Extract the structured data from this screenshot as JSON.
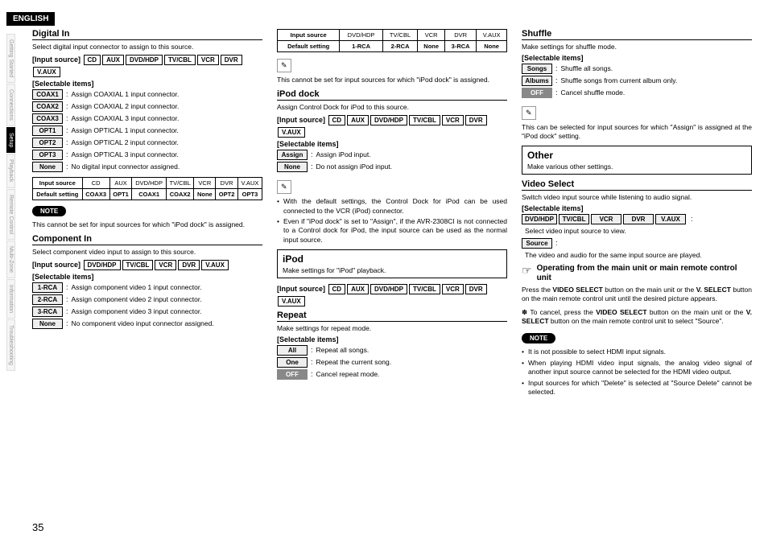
{
  "lang": "ENGLISH",
  "sideTabs": [
    "Getting Started",
    "Connections",
    "Setup",
    "Playback",
    "Remote Control",
    "Multi-Zone",
    "Information",
    "Troubleshooting"
  ],
  "activeTab": 2,
  "pageNum": "35",
  "digitalIn": {
    "title": "Digital In",
    "sub": "Select digital input connector to assign to this source.",
    "inputLabel": "[Input source]",
    "inputs": [
      "CD",
      "AUX",
      "DVD/HDP",
      "TV/CBL",
      "VCR",
      "DVR",
      "V.AUX"
    ],
    "selLabel": "[Selectable items]",
    "items": [
      {
        "k": "COAX1",
        "d": "Assign COAXIAL 1 input connector."
      },
      {
        "k": "COAX2",
        "d": "Assign COAXIAL 2 input connector."
      },
      {
        "k": "COAX3",
        "d": "Assign COAXIAL 3 input connector."
      },
      {
        "k": "OPT1",
        "d": "Assign OPTICAL 1 input connector."
      },
      {
        "k": "OPT2",
        "d": "Assign OPTICAL 2 input connector."
      },
      {
        "k": "OPT3",
        "d": "Assign OPTICAL 3 input connector."
      },
      {
        "k": "None",
        "d": "No digital input connector assigned."
      }
    ],
    "table": {
      "h1": "Input source",
      "h2": "Default setting",
      "cols": [
        "CD",
        "AUX",
        "DVD/HDP",
        "TV/CBL",
        "VCR",
        "DVR",
        "V.AUX"
      ],
      "vals": [
        "COAX3",
        "OPT1",
        "COAX1",
        "COAX2",
        "None",
        "OPT2",
        "OPT3"
      ]
    },
    "noteLabel": "NOTE",
    "note": "This cannot be set for input sources for which \"iPod dock\" is assigned."
  },
  "componentIn": {
    "title": "Component In",
    "sub": "Select component video input to assign to this source.",
    "inputLabel": "[Input source]",
    "inputs": [
      "DVD/HDP",
      "TV/CBL",
      "VCR",
      "DVR",
      "V.AUX"
    ],
    "selLabel": "[Selectable items]",
    "items": [
      {
        "k": "1-RCA",
        "d": "Assign component video 1 input connector."
      },
      {
        "k": "2-RCA",
        "d": "Assign component video 2 input connector."
      },
      {
        "k": "3-RCA",
        "d": "Assign component video 3 input connector."
      },
      {
        "k": "None",
        "d": "No component video input connector assigned."
      }
    ]
  },
  "compTable": {
    "h1": "Input source",
    "h2": "Default setting",
    "cols": [
      "DVD/HDP",
      "TV/CBL",
      "VCR",
      "DVR",
      "V.AUX"
    ],
    "vals": [
      "1-RCA",
      "2-RCA",
      "None",
      "3-RCA",
      "None"
    ]
  },
  "compNote": "This cannot be set for input sources for which \"iPod dock\" is assigned.",
  "ipodDock": {
    "title": "iPod dock",
    "sub": "Assign Control Dock for iPod to this source.",
    "inputLabel": "[Input source]",
    "inputs": [
      "CD",
      "AUX",
      "DVD/HDP",
      "TV/CBL",
      "VCR",
      "DVR",
      "V.AUX"
    ],
    "selLabel": "[Selectable items]",
    "items": [
      {
        "k": "Assign",
        "d": "Assign iPod input."
      },
      {
        "k": "None",
        "d": "Do not assign iPod input."
      }
    ],
    "bullets": [
      "With the default settings, the Control Dock for iPod can be used connected to the VCR (iPod) connector.",
      "Even if \"iPod dock\" is set to \"Assign\", if the AVR-2308CI is not connected to a Control dock for iPod, the input source can be used as the normal input source."
    ]
  },
  "ipodBox": {
    "title": "iPod",
    "sub": "Make settings for \"iPod\" playback."
  },
  "ipodInputLabel": "[Input source]",
  "ipodInputs": [
    "CD",
    "AUX",
    "DVD/HDP",
    "TV/CBL",
    "VCR",
    "DVR",
    "V.AUX"
  ],
  "repeat": {
    "title": "Repeat",
    "sub": "Make settings for repeat mode.",
    "selLabel": "[Selectable items]",
    "items": [
      {
        "k": "All",
        "d": "Repeat all songs."
      },
      {
        "k": "One",
        "d": "Repeat the current song."
      },
      {
        "k": "OFF",
        "d": "Cancel repeat mode.",
        "dark": true
      }
    ]
  },
  "shuffle": {
    "title": "Shuffle",
    "sub": "Make settings for shuffle mode.",
    "selLabel": "[Selectable items]",
    "items": [
      {
        "k": "Songs",
        "d": "Shuffle all songs."
      },
      {
        "k": "Albums",
        "d": "Shuffle songs from current album only."
      },
      {
        "k": "OFF",
        "d": "Cancel shuffle mode.",
        "dark": true
      }
    ],
    "note": "This can be selected for input sources for which \"Assign\" is assigned at the \"iPod dock\" setting."
  },
  "otherBox": {
    "title": "Other",
    "sub": "Make various other settings."
  },
  "videoSelect": {
    "title": "Video Select",
    "sub": "Switch video input source while listening to audio signal.",
    "selLabel": "[Selectable items]",
    "row1": [
      "DVD/HDP",
      "TV/CBL",
      "VCR",
      "DVR",
      "V.AUX"
    ],
    "row1desc": "Select video input source to view.",
    "row2": "Source",
    "row2desc": "The video and audio for the same input source are played."
  },
  "operating": {
    "title": "Operating from the main unit or main remote control unit",
    "p1a": "Press the ",
    "p1b": "VIDEO SELECT",
    "p1c": " button on the main unit or the ",
    "p1d": "V. SELECT",
    "p1e": " button on the main remote control unit until the desired picture appears.",
    "p2a": "To cancel, press the ",
    "p2b": "VIDEO SELECT",
    "p2c": " button on the main unit or the ",
    "p2d": "V. SELECT",
    "p2e": " button on the main remote control unit to select \"Source\".",
    "noteLabel": "NOTE",
    "bullets": [
      "It is not possible to select HDMI input signals.",
      "When playing HDMI video input signals, the analog video signal of another input source cannot be selected for the HDMI video output.",
      "Input sources for which \"Delete\" is selected at \"Source Delete\" cannot be selected."
    ]
  }
}
